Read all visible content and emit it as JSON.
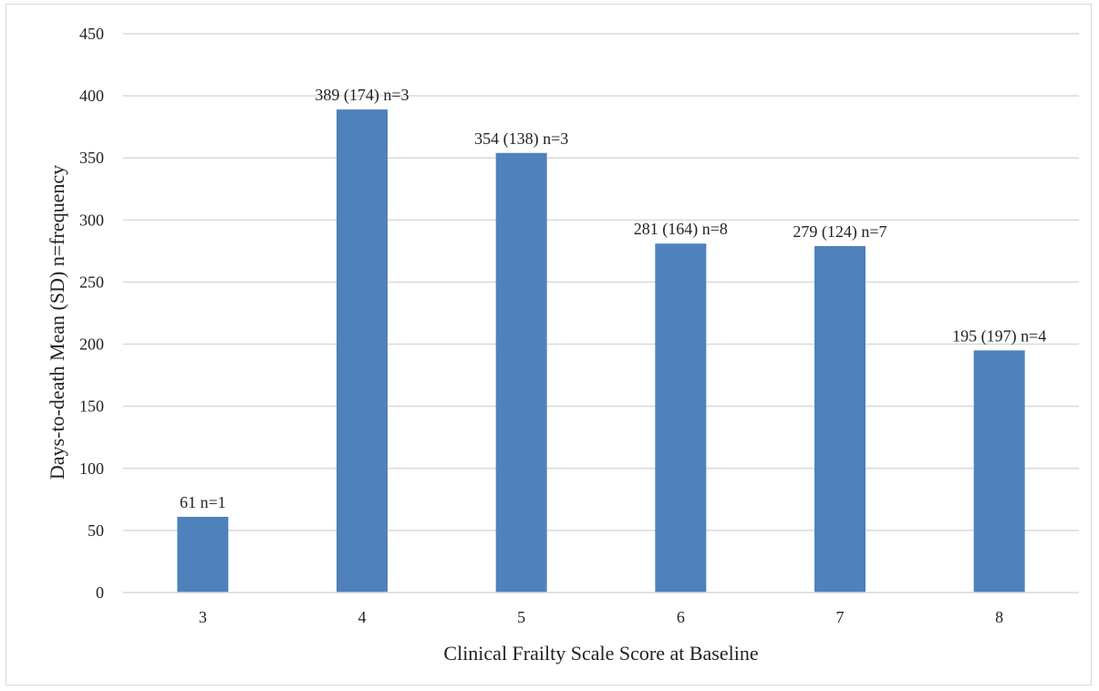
{
  "chart_data": {
    "type": "bar",
    "xlabel": "Clinical Frailty Scale Score at Baseline",
    "ylabel": "Days-to-death Mean (SD) n=frequency",
    "ylim": [
      0,
      450
    ],
    "yticks": [
      0,
      50,
      100,
      150,
      200,
      250,
      300,
      350,
      400,
      450
    ],
    "grid": true,
    "categories": [
      "3",
      "4",
      "5",
      "6",
      "7",
      "8"
    ],
    "values": [
      61,
      389,
      354,
      281,
      279,
      195
    ],
    "data_labels": [
      "61 n=1",
      "389 (174) n=3",
      "354 (138) n=3",
      "281 (164) n=8",
      "279 (124) n=7",
      "195 (197) n=4"
    ],
    "bar_color": "#4F81BD",
    "grid_color": "#D9D9D9"
  }
}
